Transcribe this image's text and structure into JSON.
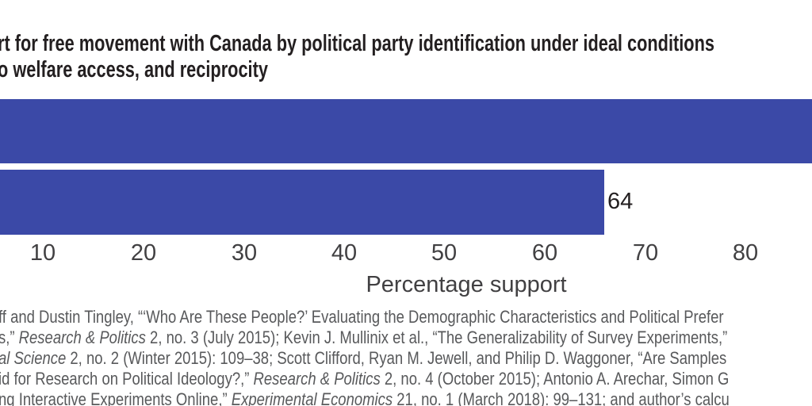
{
  "title": {
    "line1": "rt for free movement with Canada by political party identification under ideal conditions",
    "line2": "o welfare access, and reciprocity"
  },
  "chart_data": {
    "type": "bar",
    "orientation": "horizontal",
    "title": "rt for free movement with Canada by political party identification under ideal conditions o welfare access, and reciprocity",
    "xlabel": "Percentage support",
    "x_ticks": [
      10,
      20,
      30,
      40,
      50,
      60,
      70,
      80
    ],
    "categories": [
      "",
      ""
    ],
    "values": [
      null,
      64
    ],
    "value_labels": [
      "",
      "64"
    ],
    "bar_color": "#3b49a7",
    "note": "Figure is cropped on all sides: category labels and the zero baseline are cut off at the left, the title is truncated at both edges, and the top bar runs past the right edge so its value label is not visible. Only the bottom bar's label (64) is shown."
  },
  "source": {
    "lines": [
      [
        {
          "t": "ff and Dustin Tingley, “‘Who Are These People?’ Evaluating the Demographic Characteristics and Political Prefer",
          "i": false
        }
      ],
      [
        {
          "t": "s,” ",
          "i": false
        },
        {
          "t": "Research & Politics",
          "i": true
        },
        {
          "t": " 2, no. 3 (July 2015); Kevin J. Mullinix et al., “The Generalizability of Survey Experiments,”",
          "i": false
        }
      ],
      [
        {
          "t": "al Science",
          "i": true
        },
        {
          "t": " 2, no. 2 (Winter 2015): 109–38; Scott Clifford, Ryan M. Jewell, and Philip D. Waggoner, “Are Samples",
          "i": false
        }
      ],
      [
        {
          "t": "id for Research on Political Ideology?,” ",
          "i": false
        },
        {
          "t": "Research & Politics",
          "i": true
        },
        {
          "t": " 2, no. 4 (October 2015); Antonio A. Arechar, Simon G",
          "i": false
        }
      ],
      [
        {
          "t": "ng Interactive Experiments Online,” ",
          "i": false
        },
        {
          "t": "Experimental Economics",
          "i": true
        },
        {
          "t": " 21, no. 1 (March 2018): 99–131; and author’s calcu",
          "i": false
        }
      ]
    ]
  },
  "colors": {
    "bar": "#3b49a7",
    "title_text": "#231f20",
    "axis_text": "#414042",
    "source_text": "#58595b",
    "background": "#ffffff"
  }
}
